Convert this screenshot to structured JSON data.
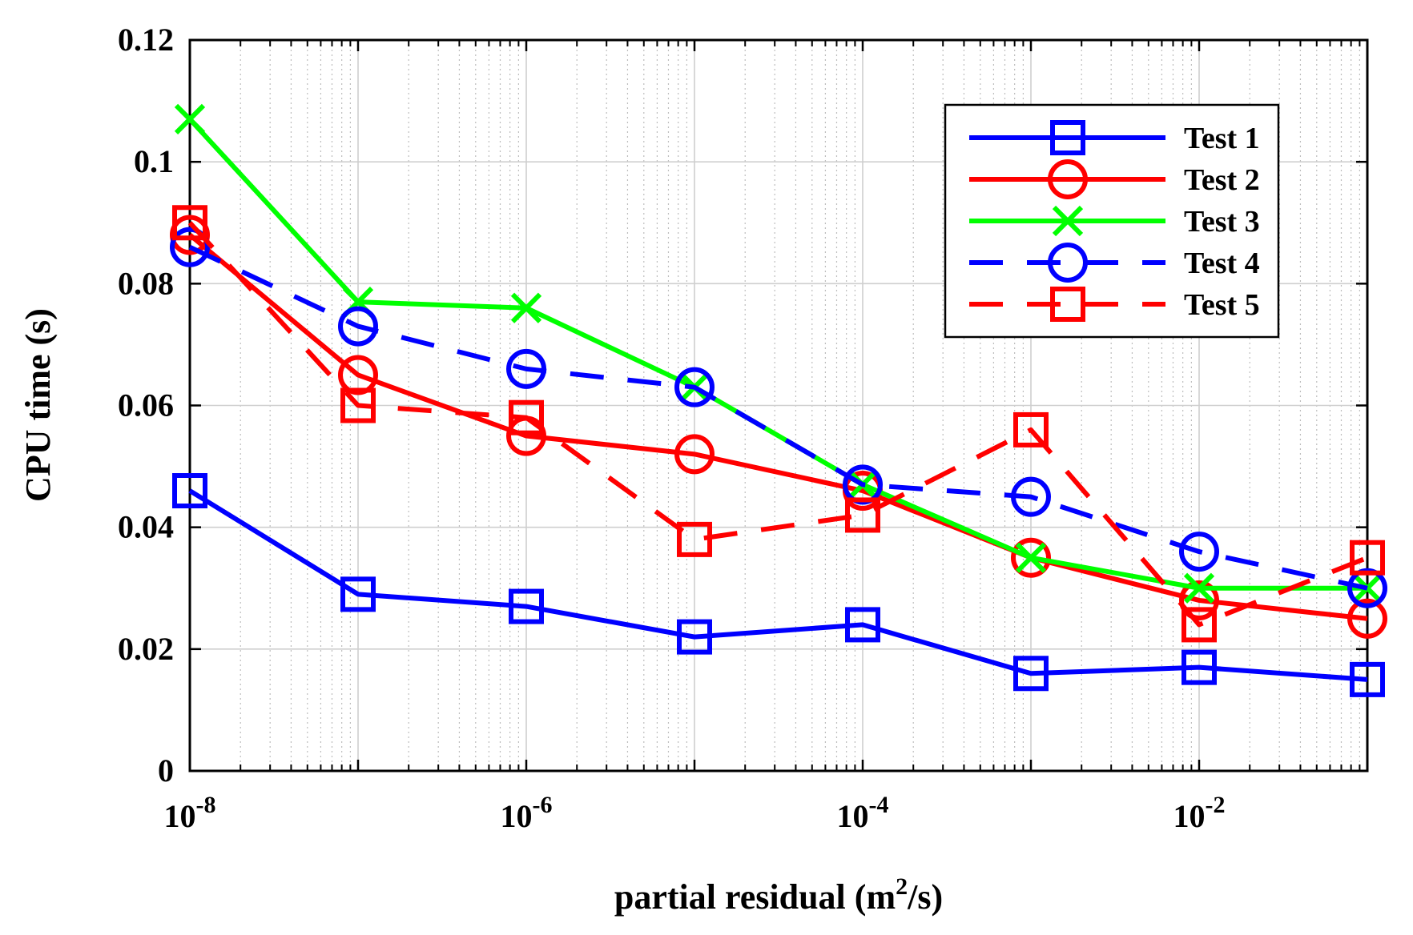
{
  "chart_data": {
    "type": "line",
    "title": "",
    "xlabel": "partial residual (m²/s)",
    "xlabel_parts": {
      "prefix": "partial residual (m",
      "sup": "2",
      "suffix": "/s)"
    },
    "ylabel": "CPU time (s)",
    "xscale": "log",
    "xlim_exponents": [
      -8,
      -1
    ],
    "ylim": [
      0,
      0.12
    ],
    "grid": true,
    "legend_position": "top-right",
    "x": [
      1e-08,
      1e-07,
      1e-06,
      1e-05,
      0.0001,
      0.001,
      0.01,
      0.1
    ],
    "x_ticks": [
      {
        "exp": -8,
        "base": "10",
        "sup": "-8"
      },
      {
        "exp": -6,
        "base": "10",
        "sup": "-6"
      },
      {
        "exp": -4,
        "base": "10",
        "sup": "-4"
      },
      {
        "exp": -2,
        "base": "10",
        "sup": "-2"
      }
    ],
    "y_ticks": [
      {
        "value": 0,
        "label": "0"
      },
      {
        "value": 0.02,
        "label": "0.02"
      },
      {
        "value": 0.04,
        "label": "0.04"
      },
      {
        "value": 0.06,
        "label": "0.06"
      },
      {
        "value": 0.08,
        "label": "0.08"
      },
      {
        "value": 0.1,
        "label": "0.1"
      },
      {
        "value": 0.12,
        "label": "0.12"
      }
    ],
    "series": [
      {
        "name": "Test 1",
        "color": "#0000ff",
        "dashed": false,
        "marker": "square",
        "values": [
          0.046,
          0.029,
          0.027,
          0.022,
          0.024,
          0.016,
          0.017,
          0.015
        ]
      },
      {
        "name": "Test 2",
        "color": "#ff0000",
        "dashed": false,
        "marker": "circle",
        "values": [
          0.088,
          0.065,
          0.055,
          0.052,
          0.046,
          0.035,
          0.028,
          0.025
        ]
      },
      {
        "name": "Test 3",
        "color": "#00ff00",
        "dashed": false,
        "marker": "x",
        "values": [
          0.107,
          0.077,
          0.076,
          0.063,
          0.047,
          0.035,
          0.03,
          0.03
        ]
      },
      {
        "name": "Test 4",
        "color": "#0000ff",
        "dashed": true,
        "marker": "circle",
        "values": [
          0.086,
          0.073,
          0.066,
          0.063,
          0.047,
          0.045,
          0.036,
          0.03
        ]
      },
      {
        "name": "Test 5",
        "color": "#ff0000",
        "dashed": true,
        "marker": "square",
        "values": [
          0.09,
          0.06,
          0.058,
          0.038,
          0.042,
          0.056,
          0.024,
          0.035
        ]
      }
    ]
  }
}
